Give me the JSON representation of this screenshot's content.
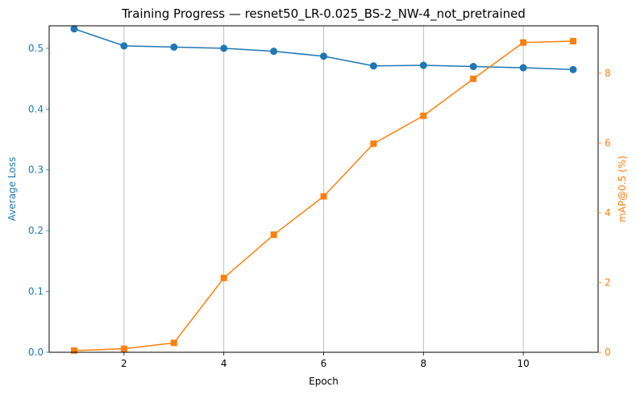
{
  "chart_data": {
    "type": "line",
    "title": "Training Progress — resnet50_LR-0.025_BS-2_NW-4_not_pretrained",
    "xlabel": "Epoch",
    "ylabel_left": "Average Loss",
    "ylabel_right": "mAP@0.5 (%)",
    "x": [
      1,
      2,
      3,
      4,
      5,
      6,
      7,
      8,
      9,
      10,
      11
    ],
    "xlim": [
      0.5,
      11.5
    ],
    "xticks": [
      "2",
      "4",
      "6",
      "8",
      "10"
    ],
    "ylim_left": [
      0,
      0.537
    ],
    "yticks_left": [
      "0.0",
      "0.1",
      "0.2",
      "0.3",
      "0.4",
      "0.5"
    ],
    "ylim_right": [
      0,
      9.36
    ],
    "yticks_right": [
      "0",
      "2",
      "4",
      "6",
      "8"
    ],
    "grid": "vertical at x ticks",
    "series": [
      {
        "axis": "left",
        "color": "#1f77b4",
        "marker": "circle",
        "values": [
          0.532,
          0.504,
          0.502,
          0.5,
          0.495,
          0.487,
          0.471,
          0.472,
          0.47,
          0.468,
          0.465
        ]
      },
      {
        "axis": "right",
        "color": "#ff7f0e",
        "marker": "square",
        "values": [
          0.05,
          0.1,
          0.27,
          2.13,
          3.37,
          4.47,
          5.98,
          6.78,
          7.84,
          8.88,
          8.92
        ]
      }
    ]
  }
}
